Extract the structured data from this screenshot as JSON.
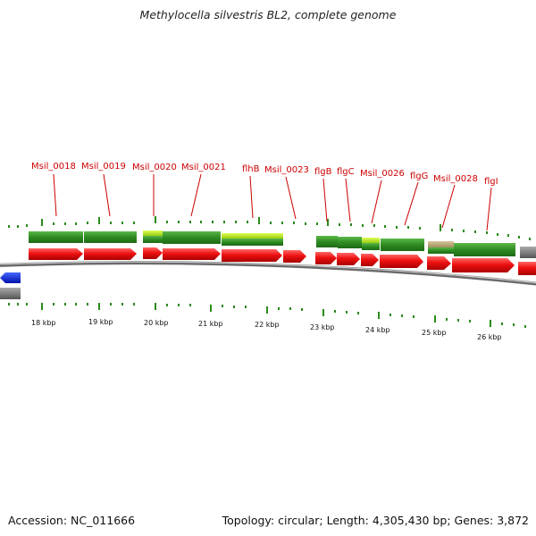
{
  "title": "Methylocella silvestris BL2, complete genome",
  "footer": {
    "accession": "Accession: NC_011666",
    "summary": "Topology: circular; Length: 4,305,430 bp; Genes: 3,872"
  },
  "gene_labels": [
    "Msil_0018",
    "Msil_0019",
    "Msil_0020",
    "Msil_0021",
    "flhB",
    "Msil_0023",
    "flgB",
    "flgC",
    "Msil_0026",
    "flgG",
    "Msil_0028",
    "flgI"
  ],
  "kbp_labels": [
    "18 kbp",
    "19 kbp",
    "20 kbp",
    "21 kbp",
    "22 kbp",
    "23 kbp",
    "24 kbp",
    "25 kbp",
    "26 kbp"
  ],
  "colors": {
    "gene_arrow": "#ee1111",
    "cds_feature": "#2e8b22",
    "highlight_feature": "#aadd22",
    "tan_feature": "#b8a878",
    "label_red": "#cc0000",
    "tick_green": "#2a8a1a",
    "backbone": "#777777",
    "blue_feature": "#1133dd"
  }
}
